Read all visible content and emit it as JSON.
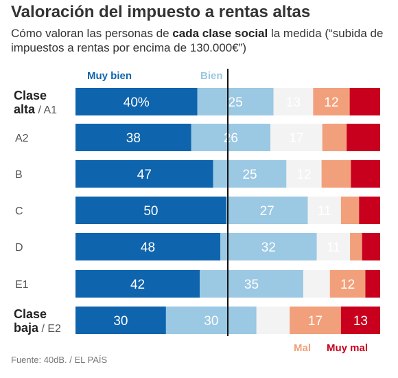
{
  "header": {
    "title": "Valoración del impuesto a rentas altas",
    "subtitle_pre": "Cómo valoran las personas de ",
    "subtitle_bold": "cada clase social",
    "subtitle_post": " la medida (“subida de impuestos a rentas por encima de 130.000€”)"
  },
  "footer": {
    "source": "Fuente: 40dB. / EL PAÍS"
  },
  "chart_data": {
    "type": "bar",
    "orientation": "horizontal",
    "stacked": true,
    "grid": false,
    "legend_position": "top-left and bottom-right",
    "categories": [
      {
        "bold": "Clase\nalta",
        "label": " / A1"
      },
      {
        "bold": "",
        "label": "A2"
      },
      {
        "bold": "",
        "label": "B"
      },
      {
        "bold": "",
        "label": "C"
      },
      {
        "bold": "",
        "label": "D"
      },
      {
        "bold": "",
        "label": "E1"
      },
      {
        "bold": "Clase\nbaja",
        "label": " / E2"
      }
    ],
    "series": [
      {
        "name": "Muy bien",
        "color": "#0e64ad",
        "label_color": "#ffffff",
        "values": [
          40,
          38,
          47,
          50,
          48,
          42,
          30
        ],
        "value_labels": [
          "40%",
          "38",
          "47",
          "50",
          "48",
          "42",
          "30"
        ]
      },
      {
        "name": "Bien",
        "color": "#9bc8e3",
        "label_color": "#ffffff",
        "values": [
          25,
          26,
          25,
          27,
          32,
          35,
          30
        ],
        "value_labels": [
          "25",
          "26",
          "25",
          "27",
          "32",
          "35",
          "30"
        ]
      },
      {
        "name": "",
        "color": "#f3f3f3",
        "label_color": "#ffffff",
        "values": [
          13,
          17,
          12,
          11,
          11,
          9,
          11
        ],
        "value_labels": [
          "13",
          "17",
          "12",
          "11",
          "11",
          "",
          ""
        ]
      },
      {
        "name": "Mal",
        "color": "#f2a07b",
        "label_color": "#ffffff",
        "values": [
          12,
          8,
          10,
          6,
          4,
          12,
          17
        ],
        "value_labels": [
          "12",
          "",
          "",
          "",
          "",
          "12",
          "17"
        ]
      },
      {
        "name": "Muy mal",
        "color": "#c8001e",
        "label_color": "#ffffff",
        "values": [
          10,
          11,
          10,
          7,
          6,
          5,
          13
        ],
        "value_labels": [
          "",
          "",
          "",
          "",
          "",
          "",
          "13"
        ]
      }
    ],
    "divider_after_series": 1,
    "legend_colors": {
      "Muy bien": "#0e64ad",
      "Bien": "#9bc8e3",
      "Mal": "#f2a07b",
      "Muy mal": "#c8001e"
    }
  }
}
